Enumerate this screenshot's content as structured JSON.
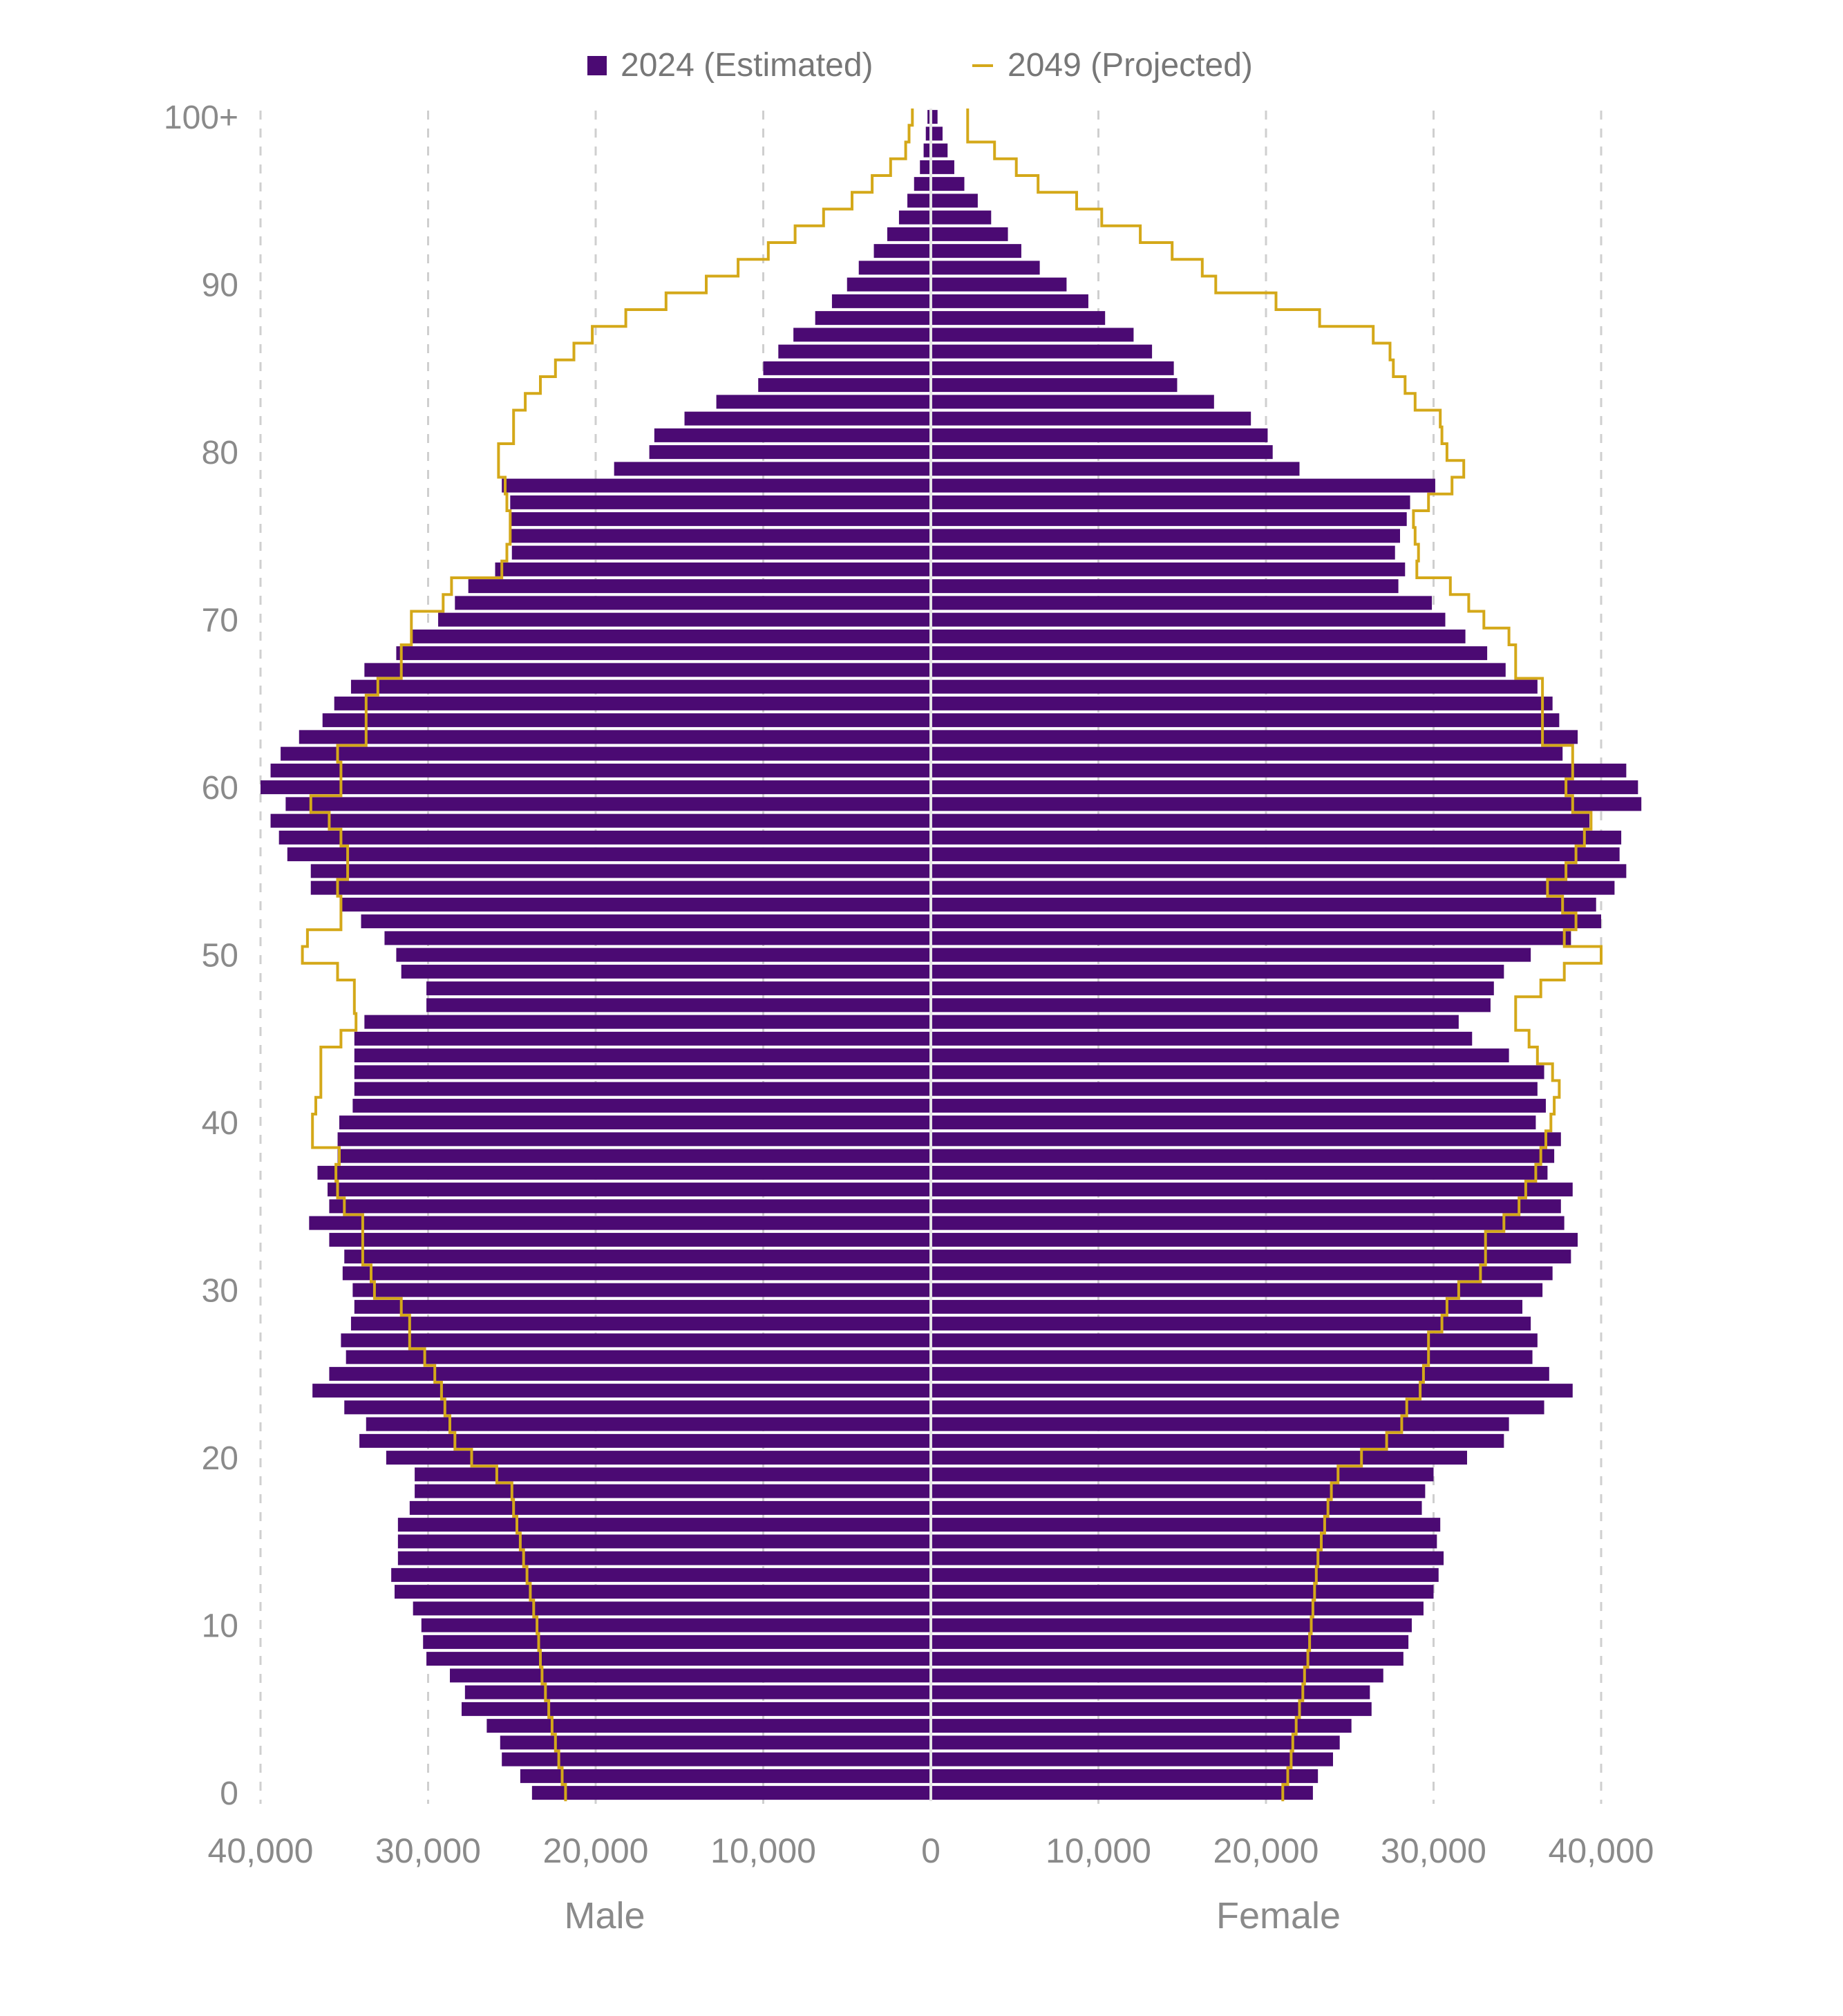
{
  "chart_data": {
    "type": "bar",
    "legend_position": "top",
    "grid": true,
    "legend": {
      "items": [
        {
          "label": "2024 (Estimated)",
          "color": "#4b0a73",
          "marker": "square"
        },
        {
          "label": "2049 (Projected)",
          "color": "#d4a819",
          "marker": "line"
        }
      ]
    },
    "x_axis": {
      "range": [
        -40000,
        40000
      ],
      "ticks": [
        -40000,
        -30000,
        -20000,
        -10000,
        0,
        10000,
        20000,
        30000,
        40000
      ],
      "tick_labels": [
        "40,000",
        "30,000",
        "20,000",
        "10,000",
        "0",
        "10,000",
        "20,000",
        "30,000",
        "40,000"
      ],
      "male_label": "Male",
      "female_label": "Female"
    },
    "y_axis": {
      "ticks": [
        0,
        10,
        20,
        30,
        40,
        50,
        60,
        70,
        80,
        90,
        100
      ],
      "tick_labels": [
        "0",
        "10",
        "20",
        "30",
        "40",
        "50",
        "60",
        "70",
        "80",
        "90",
        "100+"
      ]
    },
    "ages": [
      0,
      1,
      2,
      3,
      4,
      5,
      6,
      7,
      8,
      9,
      10,
      11,
      12,
      13,
      14,
      15,
      16,
      17,
      18,
      19,
      20,
      21,
      22,
      23,
      24,
      25,
      26,
      27,
      28,
      29,
      30,
      31,
      32,
      33,
      34,
      35,
      36,
      37,
      38,
      39,
      40,
      41,
      42,
      43,
      44,
      45,
      46,
      47,
      48,
      49,
      50,
      51,
      52,
      53,
      54,
      55,
      56,
      57,
      58,
      59,
      60,
      61,
      62,
      63,
      64,
      65,
      66,
      67,
      68,
      69,
      70,
      71,
      72,
      73,
      74,
      75,
      76,
      77,
      78,
      79,
      80,
      81,
      82,
      83,
      84,
      85,
      86,
      87,
      88,
      89,
      90,
      91,
      92,
      93,
      94,
      95,
      96,
      97,
      98,
      99,
      100
    ],
    "series": [
      {
        "name": "2024 (Estimated)",
        "male": [
          23800,
          24500,
          25600,
          25700,
          26500,
          28000,
          27800,
          28700,
          30100,
          30300,
          30400,
          30900,
          32000,
          32200,
          31800,
          31800,
          31800,
          31100,
          30800,
          30800,
          32500,
          34100,
          33700,
          35000,
          36900,
          35900,
          34900,
          35200,
          34600,
          34400,
          34500,
          35100,
          35000,
          35900,
          37100,
          35900,
          36000,
          36600,
          35400,
          35400,
          35300,
          34500,
          34400,
          34400,
          34400,
          34400,
          33800,
          30100,
          30100,
          31600,
          31900,
          32600,
          34000,
          35200,
          37000,
          37000,
          38400,
          38900,
          39400,
          38500,
          40000,
          39400,
          38800,
          37700,
          36300,
          35600,
          34600,
          33800,
          31900,
          31000,
          29400,
          28400,
          27600,
          26000,
          25000,
          25100,
          25100,
          25100,
          25600,
          18900,
          16800,
          16500,
          14700,
          12800,
          10300,
          10000,
          9100,
          8200,
          6900,
          5900,
          5000,
          4300,
          3400,
          2600,
          1900,
          1400,
          1000,
          650,
          430,
          300,
          200
        ],
        "female": [
          22800,
          23100,
          24000,
          24400,
          25100,
          26300,
          26200,
          27000,
          28200,
          28500,
          28700,
          29400,
          30000,
          30300,
          30600,
          30200,
          30400,
          29300,
          29500,
          30000,
          32000,
          34200,
          34500,
          36600,
          38300,
          36900,
          35900,
          36200,
          35800,
          35300,
          36500,
          37100,
          38200,
          38600,
          37800,
          37600,
          38300,
          36800,
          37200,
          37600,
          36100,
          36700,
          36200,
          36600,
          34500,
          32300,
          31500,
          33400,
          33600,
          34200,
          35800,
          38200,
          40000,
          39700,
          40800,
          41500,
          41100,
          41200,
          39300,
          42400,
          42200,
          41500,
          37700,
          38600,
          37500,
          37100,
          36200,
          34300,
          33200,
          31900,
          30700,
          29900,
          27900,
          28300,
          27700,
          28000,
          28400,
          28600,
          30100,
          22000,
          20400,
          20100,
          19100,
          16900,
          14700,
          14500,
          13200,
          12100,
          10400,
          9400,
          8100,
          6500,
          5400,
          4600,
          3600,
          2800,
          2000,
          1400,
          1000,
          700,
          400
        ]
      },
      {
        "name": "2049 (Projected)",
        "male": [
          21800,
          22000,
          22200,
          22400,
          22600,
          22800,
          23000,
          23200,
          23300,
          23400,
          23500,
          23700,
          23900,
          24100,
          24300,
          24500,
          24700,
          24900,
          25000,
          25900,
          27400,
          28400,
          28700,
          29000,
          29200,
          29600,
          30200,
          31100,
          31100,
          31600,
          33200,
          33400,
          33900,
          33900,
          33900,
          35000,
          35400,
          35500,
          35300,
          36900,
          36900,
          36700,
          36400,
          36400,
          36400,
          35200,
          34300,
          34400,
          34400,
          35400,
          37500,
          37200,
          35200,
          35200,
          35400,
          34800,
          34800,
          35200,
          35900,
          37000,
          35200,
          35200,
          35400,
          33700,
          33700,
          33700,
          33000,
          31600,
          31600,
          31000,
          31000,
          29100,
          28600,
          25600,
          25300,
          25100,
          25100,
          25300,
          25400,
          25800,
          25800,
          24900,
          24900,
          24200,
          23300,
          22400,
          21300,
          20200,
          18200,
          15800,
          13400,
          11500,
          9700,
          8100,
          6400,
          4700,
          3500,
          2400,
          1500,
          1300,
          1100
        ],
        "female": [
          21000,
          21300,
          21500,
          21600,
          21800,
          22000,
          22200,
          22300,
          22500,
          22600,
          22700,
          22800,
          22900,
          23000,
          23100,
          23300,
          23500,
          23700,
          23900,
          24300,
          25700,
          27200,
          28100,
          28400,
          29200,
          29400,
          29700,
          29700,
          30500,
          30800,
          31500,
          32800,
          33100,
          33100,
          34200,
          35100,
          35500,
          36100,
          36400,
          36700,
          37000,
          37200,
          37500,
          37100,
          36200,
          35700,
          34900,
          34900,
          36400,
          37800,
          40000,
          37800,
          38500,
          37700,
          36800,
          37900,
          38500,
          39000,
          39400,
          38300,
          37900,
          38300,
          38300,
          36500,
          36500,
          36500,
          36500,
          34900,
          34900,
          34500,
          33000,
          32100,
          31000,
          29000,
          29100,
          28900,
          28800,
          29700,
          31100,
          31800,
          30800,
          30500,
          30400,
          28900,
          28300,
          27600,
          27400,
          26400,
          23200,
          20600,
          17000,
          16200,
          14400,
          12500,
          10200,
          8700,
          6400,
          5100,
          3800,
          2200,
          2200
        ]
      }
    ]
  }
}
